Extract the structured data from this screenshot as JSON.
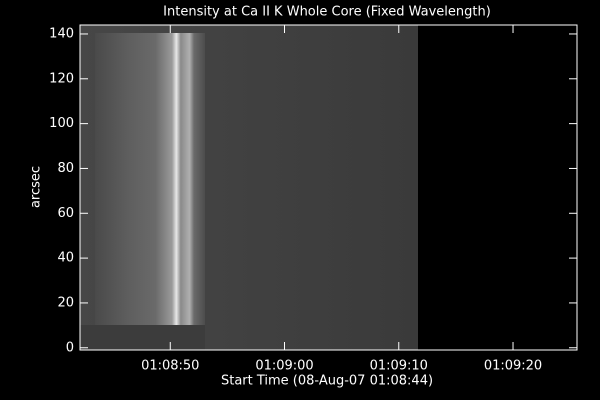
{
  "chart_data": {
    "type": "image",
    "title": "Intensity at Ca II K Whole Core (Fixed Wavelength)",
    "x_label": "Start Time (08-Aug-07 01:08:44)",
    "y_label": "arcsec",
    "xlim": [
      -1.9,
      41.6
    ],
    "xticks": [
      {
        "value": 6,
        "label": "01:08:50"
      },
      {
        "value": 16,
        "label": "01:09:00"
      },
      {
        "value": 26,
        "label": "01:09:10"
      },
      {
        "value": 36,
        "label": "01:09:20"
      }
    ],
    "ylim": [
      -1,
      144
    ],
    "yticks": [
      0,
      20,
      40,
      60,
      80,
      100,
      120,
      140
    ]
  }
}
